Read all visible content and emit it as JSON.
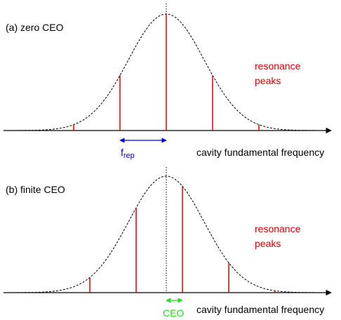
{
  "panels": [
    {
      "label": "(a) zero CEO",
      "annotation": [
        "resonance",
        "peaks"
      ],
      "marker": {
        "main": "f",
        "sub": "rep"
      },
      "axis_label": "cavity fundamental frequency"
    },
    {
      "label": "(b) finite CEO",
      "annotation": [
        "resonance",
        "peaks"
      ],
      "marker": {
        "main": "CEO"
      },
      "axis_label": "cavity fundamental frequency"
    }
  ]
}
